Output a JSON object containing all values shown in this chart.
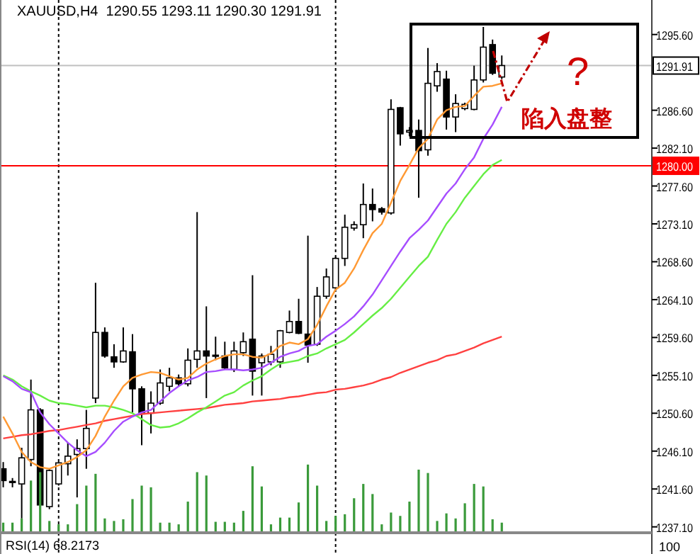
{
  "chart_data": {
    "type": "candlestick",
    "title": "XAUUSD,H4  1290.55 1293.11 1290.30 1291.91",
    "categories": [
      null,
      null,
      null,
      null,
      null,
      null,
      null,
      null,
      null,
      null,
      null,
      null,
      null,
      null,
      null,
      null,
      null,
      null,
      null,
      null,
      null,
      null,
      null,
      null,
      null,
      null,
      null,
      null,
      null,
      null,
      null,
      null,
      null,
      null,
      null,
      null,
      null,
      null,
      null,
      null,
      null,
      null,
      null,
      null,
      null,
      null,
      null,
      null,
      null,
      null,
      null,
      null,
      null,
      null,
      null
    ],
    "ohlc": [
      [
        1244.0,
        1244.8,
        1241.8,
        1242.6
      ],
      [
        1242.4,
        1242.9,
        1241.8,
        1242.5
      ],
      [
        1242.2,
        1246.5,
        1238.1,
        1245.3
      ],
      [
        1245.1,
        1254.6,
        1244.3,
        1251.0
      ],
      [
        1251.0,
        1251.2,
        1239.2,
        1239.7
      ],
      [
        1239.5,
        1244.0,
        1239.2,
        1243.8
      ],
      [
        1242.2,
        1244.8,
        1242.0,
        1244.7
      ],
      [
        1244.6,
        1247.1,
        1243.2,
        1245.5
      ],
      [
        1245.7,
        1247.5,
        1240.6,
        1246.4
      ],
      [
        1246.4,
        1251.0,
        1244.0,
        1248.8
      ],
      [
        1252.4,
        1266.1,
        1251.8,
        1260.2
      ],
      [
        1260.2,
        1260.8,
        1257.2,
        1257.4
      ],
      [
        1257.3,
        1258.8,
        1256.0,
        1256.7
      ],
      [
        1256.7,
        1260.8,
        1256.6,
        1258.0
      ],
      [
        1257.9,
        1260.0,
        1250.7,
        1253.5
      ],
      [
        1253.5,
        1253.8,
        1246.8,
        1250.7
      ],
      [
        1250.6,
        1253.2,
        1248.2,
        1251.8
      ],
      [
        1251.8,
        1255.8,
        1251.6,
        1254.2
      ],
      [
        1253.8,
        1256.0,
        1253.2,
        1254.8
      ],
      [
        1254.8,
        1255.2,
        1253.8,
        1254.1
      ],
      [
        1254.1,
        1258.3,
        1253.8,
        1256.9
      ],
      [
        1257.0,
        1274.5,
        1256.0,
        1258.0
      ],
      [
        1258.0,
        1263.3,
        1252.4,
        1257.4
      ],
      [
        1257.4,
        1259.7,
        1256.9,
        1257.5
      ],
      [
        1257.4,
        1259.1,
        1255.8,
        1256.0
      ],
      [
        1255.8,
        1259.1,
        1255.5,
        1258.0
      ],
      [
        1257.8,
        1260.2,
        1257.4,
        1259.1
      ],
      [
        1259.4,
        1267.0,
        1252.7,
        1255.6
      ],
      [
        1256.6,
        1257.7,
        1252.7,
        1257.4
      ],
      [
        1256.7,
        1258.6,
        1256.3,
        1257.6
      ],
      [
        1256.7,
        1260.5,
        1256.0,
        1260.4
      ],
      [
        1260.2,
        1262.8,
        1260.1,
        1261.5
      ],
      [
        1261.5,
        1264.2,
        1260.0,
        1260.1
      ],
      [
        1260.0,
        1271.7,
        1256.6,
        1258.7
      ],
      [
        1258.8,
        1265.6,
        1258.6,
        1264.5
      ],
      [
        1264.5,
        1267.8,
        1264.2,
        1266.8
      ],
      [
        1265.5,
        1269.2,
        1265.3,
        1269.0
      ],
      [
        1269.0,
        1274.2,
        1268.1,
        1272.7
      ],
      [
        1272.6,
        1273.4,
        1272.3,
        1273.0
      ],
      [
        1273.0,
        1277.9,
        1271.4,
        1275.4
      ],
      [
        1275.4,
        1277.3,
        1273.4,
        1274.8
      ],
      [
        1274.9,
        1275.1,
        1274.2,
        1274.5
      ],
      [
        1274.4,
        1287.9,
        1274.2,
        1286.7
      ],
      [
        1286.9,
        1287.0,
        1282.4,
        1283.8
      ],
      [
        1284.0,
        1284.6,
        1283.5,
        1284.2
      ],
      [
        1284.2,
        1285.5,
        1276.2,
        1281.8
      ],
      [
        1281.9,
        1294.0,
        1281.2,
        1289.8
      ],
      [
        1289.5,
        1292.2,
        1288.8,
        1291.2
      ],
      [
        1290.3,
        1291.3,
        1284.3,
        1285.8
      ],
      [
        1285.8,
        1288.5,
        1284.0,
        1287.4
      ],
      [
        1286.8,
        1287.5,
        1286.6,
        1287.3
      ],
      [
        1286.7,
        1291.9,
        1286.6,
        1290.2
      ],
      [
        1290.2,
        1296.5,
        1289.9,
        1294.1
      ],
      [
        1294.4,
        1295.0,
        1290.8,
        1291.0
      ],
      [
        1290.55,
        1293.11,
        1290.3,
        1291.91
      ]
    ],
    "series": [
      {
        "type": "bar",
        "color": "#3a9a3a",
        "values": [
          1237.6,
          1237.6,
          1238.1,
          1242.6,
          1243.6,
          1237.8,
          1237.4,
          1237.4,
          1239.8,
          1242.0,
          1243.4,
          1238.1,
          1237.8,
          1238.0,
          1240.4,
          1242.0,
          1241.8,
          1237.6,
          1237.6,
          1237.4,
          1240.1,
          1243.6,
          1243.2,
          1237.7,
          1237.7,
          1237.6,
          1239.0,
          1244.3,
          1241.9,
          1237.4,
          1238.2,
          1238.2,
          1240.0,
          1244.5,
          1242.0,
          1237.8,
          1238.4,
          1238.6,
          1240.5,
          1242.2,
          1241.0,
          1237.4,
          1238.8,
          1238.4,
          1240.1,
          1243.9,
          1243.5,
          1237.8,
          1238.7,
          1238.1,
          1239.9,
          1242.2,
          1241.9,
          1238.0,
          1237.6
        ]
      },
      {
        "type": "line",
        "color": "#ff4040",
        "values": [
          1247.6,
          1247.8,
          1248.0,
          1248.1,
          1248.3,
          1248.5,
          1248.6,
          1248.8,
          1249.0,
          1249.2,
          1249.4,
          1249.7,
          1249.9,
          1250.1,
          1250.3,
          1250.5,
          1250.6,
          1250.7,
          1250.8,
          1250.9,
          1251.0,
          1251.1,
          1251.2,
          1251.4,
          1251.6,
          1251.7,
          1251.8,
          1252.0,
          1252.1,
          1252.2,
          1252.3,
          1252.5,
          1252.6,
          1252.8,
          1253.0,
          1253.1,
          1253.4,
          1253.5,
          1253.7,
          1253.9,
          1254.2,
          1254.6,
          1254.9,
          1255.4,
          1255.8,
          1256.2,
          1256.6,
          1256.9,
          1257.4,
          1257.6,
          1258.0,
          1258.4,
          1258.9,
          1259.3,
          1259.7
        ]
      },
      {
        "type": "line",
        "color": "#66ee44",
        "values": [
          1255.1,
          1254.6,
          1253.8,
          1253.2,
          1252.7,
          1252.1,
          1251.8,
          1251.7,
          1251.5,
          1251.3,
          1251.5,
          1251.5,
          1251.3,
          1251.0,
          1250.6,
          1249.9,
          1249.2,
          1248.9,
          1249.0,
          1249.4,
          1250.0,
          1250.7,
          1251.3,
          1252.0,
          1252.7,
          1253.1,
          1253.9,
          1254.5,
          1255.0,
          1255.8,
          1256.5,
          1256.7,
          1256.9,
          1257.4,
          1257.7,
          1258.3,
          1258.8,
          1259.3,
          1260.2,
          1261.2,
          1262.2,
          1263.1,
          1264.2,
          1265.5,
          1266.8,
          1268.1,
          1269.2,
          1271.2,
          1273.1,
          1274.5,
          1276.2,
          1277.6,
          1279.0,
          1280.1,
          1280.7
        ]
      },
      {
        "type": "line",
        "color": "#a64dff",
        "values": [
          1255.0,
          1254.4,
          1253.5,
          1253.1,
          1250.7,
          1249.3,
          1248.2,
          1247.1,
          1246.2,
          1245.5,
          1246.0,
          1247.1,
          1248.5,
          1249.6,
          1250.2,
          1250.7,
          1251.0,
          1252.0,
          1253.0,
          1253.8,
          1254.5,
          1254.9,
          1255.5,
          1255.6,
          1255.8,
          1255.8,
          1255.7,
          1255.8,
          1256.0,
          1256.6,
          1257.3,
          1257.7,
          1258.0,
          1258.6,
          1258.8,
          1259.7,
          1260.4,
          1261.2,
          1262.1,
          1263.3,
          1264.7,
          1266.4,
          1268.1,
          1269.8,
          1271.4,
          1272.4,
          1273.5,
          1275.1,
          1276.7,
          1277.9,
          1279.6,
          1281.0,
          1283.2,
          1284.9,
          1287.0
        ]
      },
      {
        "type": "line",
        "color": "#ff9933",
        "values": [
          1250.2,
          1248.2,
          1246.0,
          1244.8,
          1244.2,
          1244.0,
          1244.4,
          1244.8,
          1245.4,
          1246.2,
          1247.9,
          1250.2,
          1252.1,
          1253.8,
          1254.8,
          1255.2,
          1255.5,
          1255.4,
          1255.0,
          1254.6,
          1254.8,
          1255.8,
          1256.5,
          1257.0,
          1257.4,
          1257.6,
          1257.6,
          1257.3,
          1257.2,
          1257.7,
          1258.6,
          1259.0,
          1258.8,
          1259.4,
          1261.1,
          1263.3,
          1265.3,
          1266.1,
          1267.8,
          1270.0,
          1272.0,
          1273.1,
          1275.6,
          1278.2,
          1280.1,
          1282.1,
          1283.2,
          1285.5,
          1286.6,
          1287.0,
          1287.1,
          1288.3,
          1289.4,
          1289.5,
          1289.8
        ]
      }
    ],
    "ylim": [
      1236.4,
      1299.7
    ],
    "yticks": [
      {
        "value": 1237.1,
        "label": "1237.10"
      },
      {
        "value": 1241.6,
        "label": "1241.60"
      },
      {
        "value": 1246.1,
        "label": "1246.10"
      },
      {
        "value": 1250.6,
        "label": "1250.60"
      },
      {
        "value": 1255.1,
        "label": "1255.10"
      },
      {
        "value": 1259.6,
        "label": "1259.60"
      },
      {
        "value": 1264.1,
        "label": "1264.10"
      },
      {
        "value": 1268.6,
        "label": "1268.60"
      },
      {
        "value": 1273.1,
        "label": "1273.10"
      },
      {
        "value": 1277.6,
        "label": "1277.60"
      },
      {
        "value": 1282.1,
        "label": "1282.10"
      },
      {
        "value": 1286.6,
        "label": "1286.60"
      },
      {
        "value": 1295.6,
        "label": "1295.60"
      }
    ],
    "ref_lines": [
      {
        "axis": "y",
        "value": 1280.0,
        "label": "1280.00",
        "color": "#ff0000"
      },
      {
        "axis": "y",
        "value": 1291.91,
        "label": "1291.91",
        "color": "#c0c0c0"
      }
    ],
    "annotations": [
      "?",
      "陷入盘整",
      "RSI(14) 68.2173",
      "100"
    ]
  }
}
